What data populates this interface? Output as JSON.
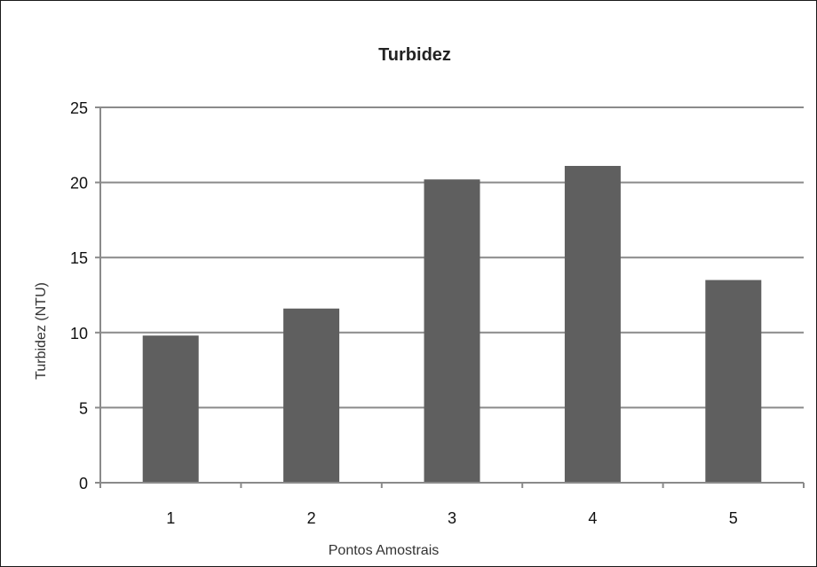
{
  "chart_data": {
    "type": "bar",
    "title": "Turbidez",
    "xlabel": "Pontos Amostrais",
    "ylabel": "Turbidez (NTU)",
    "categories": [
      "1",
      "2",
      "3",
      "4",
      "5"
    ],
    "values": [
      9.8,
      11.6,
      20.2,
      21.1,
      13.5
    ],
    "ylim": [
      0,
      25
    ],
    "yticks": [
      0,
      5,
      10,
      15,
      20,
      25
    ],
    "grid": true,
    "legend": "none",
    "bar_color": "#5f5f5f",
    "grid_color": "#8a8a8a",
    "axis_color": "#8a8a8a"
  }
}
